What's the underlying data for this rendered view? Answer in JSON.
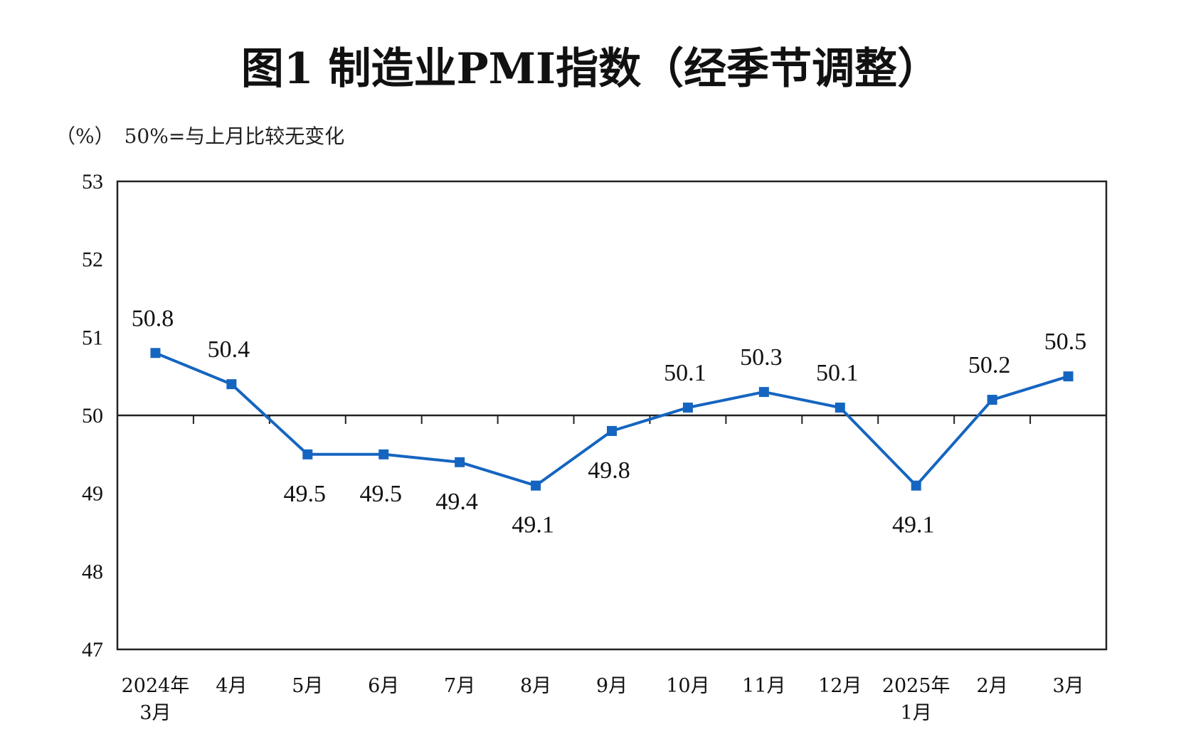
{
  "chart_data": {
    "type": "line",
    "title": "图1  制造业PMI指数（经季节调整）",
    "unit_label": "（%）",
    "note": "50%=与上月比较无变化",
    "categories": [
      [
        "2024年",
        "3月"
      ],
      [
        "4月"
      ],
      [
        "5月"
      ],
      [
        "6月"
      ],
      [
        "7月"
      ],
      [
        "8月"
      ],
      [
        "9月"
      ],
      [
        "10月"
      ],
      [
        "11月"
      ],
      [
        "12月"
      ],
      [
        "2025年",
        "1月"
      ],
      [
        "2月"
      ],
      [
        "3月"
      ]
    ],
    "values": [
      50.8,
      50.4,
      49.5,
      49.5,
      49.4,
      49.1,
      49.8,
      50.1,
      50.3,
      50.1,
      49.1,
      50.2,
      50.5
    ],
    "data_labels": [
      "50.8",
      "50.4",
      "49.5",
      "49.5",
      "49.4",
      "49.1",
      "49.8",
      "50.1",
      "50.3",
      "50.1",
      "49.1",
      "50.2",
      "50.5"
    ],
    "ylim": [
      47,
      53
    ],
    "yticks": [
      53,
      52,
      51,
      50,
      49,
      48,
      47
    ],
    "reference_line": 50,
    "grid": false,
    "series_color": "#1565C0",
    "marker": "square"
  }
}
